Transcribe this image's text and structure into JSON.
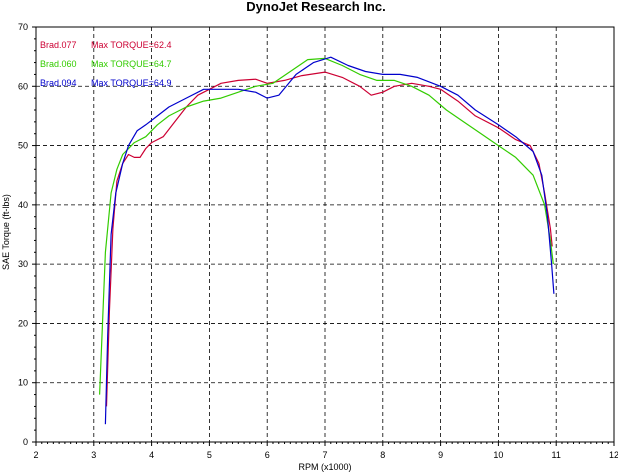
{
  "chart_data": {
    "type": "line",
    "title": "DynoJet Research Inc.",
    "xlabel": "RPM (x1000)",
    "ylabel": "SAE Torque (ft-lbs)",
    "xlim": [
      2,
      12
    ],
    "ylim": [
      0,
      70
    ],
    "xticks": [
      2,
      3,
      4,
      5,
      6,
      7,
      8,
      9,
      10,
      11,
      12
    ],
    "yticks": [
      0,
      10,
      20,
      30,
      40,
      50,
      60,
      70
    ],
    "grid": true,
    "legend_placement": "top-left",
    "series": [
      {
        "name": "Brad.077",
        "max_label": "Max TORQUE=62.4",
        "color": "#cc0033",
        "points": [
          [
            3.22,
            6
          ],
          [
            3.27,
            22
          ],
          [
            3.33,
            36
          ],
          [
            3.4,
            44
          ],
          [
            3.5,
            47
          ],
          [
            3.6,
            48.5
          ],
          [
            3.7,
            48
          ],
          [
            3.8,
            48
          ],
          [
            3.9,
            49.5
          ],
          [
            4.0,
            50.5
          ],
          [
            4.2,
            51.5
          ],
          [
            4.4,
            54
          ],
          [
            4.6,
            56.5
          ],
          [
            4.8,
            58.5
          ],
          [
            5.0,
            59.5
          ],
          [
            5.2,
            60.5
          ],
          [
            5.5,
            61
          ],
          [
            5.8,
            61.2
          ],
          [
            6.0,
            60.5
          ],
          [
            6.3,
            61
          ],
          [
            6.6,
            61.8
          ],
          [
            7.0,
            62.4
          ],
          [
            7.3,
            61.5
          ],
          [
            7.6,
            60
          ],
          [
            7.8,
            58.5
          ],
          [
            8.0,
            59
          ],
          [
            8.2,
            60
          ],
          [
            8.5,
            60.5
          ],
          [
            8.8,
            60
          ],
          [
            9.0,
            59.5
          ],
          [
            9.3,
            57.5
          ],
          [
            9.6,
            55
          ],
          [
            10.0,
            53
          ],
          [
            10.3,
            51
          ],
          [
            10.55,
            50
          ],
          [
            10.7,
            47
          ],
          [
            10.8,
            42
          ],
          [
            10.9,
            36
          ],
          [
            10.93,
            33
          ]
        ]
      },
      {
        "name": "Brad.060",
        "max_label": "Max TORQUE=64.7",
        "color": "#33cc00",
        "points": [
          [
            3.1,
            8
          ],
          [
            3.15,
            20
          ],
          [
            3.2,
            32
          ],
          [
            3.3,
            42
          ],
          [
            3.4,
            46
          ],
          [
            3.5,
            48.5
          ],
          [
            3.7,
            50.5
          ],
          [
            3.9,
            51.5
          ],
          [
            4.1,
            53.5
          ],
          [
            4.3,
            55
          ],
          [
            4.6,
            56.5
          ],
          [
            4.9,
            57.5
          ],
          [
            5.2,
            58
          ],
          [
            5.5,
            59
          ],
          [
            5.8,
            60
          ],
          [
            6.1,
            60.5
          ],
          [
            6.4,
            62.5
          ],
          [
            6.7,
            64.5
          ],
          [
            7.0,
            64.7
          ],
          [
            7.3,
            63.5
          ],
          [
            7.6,
            62
          ],
          [
            7.9,
            61
          ],
          [
            8.2,
            61
          ],
          [
            8.5,
            60
          ],
          [
            8.8,
            58.5
          ],
          [
            9.1,
            56
          ],
          [
            9.4,
            54
          ],
          [
            9.7,
            52
          ],
          [
            10.0,
            50
          ],
          [
            10.3,
            48
          ],
          [
            10.6,
            45
          ],
          [
            10.8,
            40
          ],
          [
            10.9,
            34
          ],
          [
            10.95,
            30
          ]
        ]
      },
      {
        "name": "Brad.094",
        "max_label": "Max TORQUE=64.9",
        "color": "#0000cc",
        "points": [
          [
            3.2,
            3
          ],
          [
            3.24,
            18
          ],
          [
            3.3,
            35
          ],
          [
            3.38,
            42
          ],
          [
            3.5,
            47
          ],
          [
            3.6,
            50
          ],
          [
            3.75,
            52.5
          ],
          [
            3.9,
            53.5
          ],
          [
            4.1,
            55
          ],
          [
            4.3,
            56.5
          ],
          [
            4.6,
            58
          ],
          [
            4.9,
            59.5
          ],
          [
            5.2,
            59.5
          ],
          [
            5.5,
            59.5
          ],
          [
            5.8,
            59
          ],
          [
            6.0,
            58
          ],
          [
            6.2,
            58.5
          ],
          [
            6.5,
            62
          ],
          [
            6.8,
            64
          ],
          [
            7.1,
            64.9
          ],
          [
            7.4,
            63.5
          ],
          [
            7.7,
            62.5
          ],
          [
            8.0,
            62
          ],
          [
            8.3,
            62
          ],
          [
            8.6,
            61.5
          ],
          [
            9.0,
            60
          ],
          [
            9.3,
            58.5
          ],
          [
            9.6,
            56
          ],
          [
            10.0,
            53.5
          ],
          [
            10.3,
            51.5
          ],
          [
            10.6,
            49
          ],
          [
            10.75,
            45
          ],
          [
            10.85,
            38
          ],
          [
            10.92,
            30
          ],
          [
            10.96,
            25
          ]
        ]
      }
    ]
  }
}
